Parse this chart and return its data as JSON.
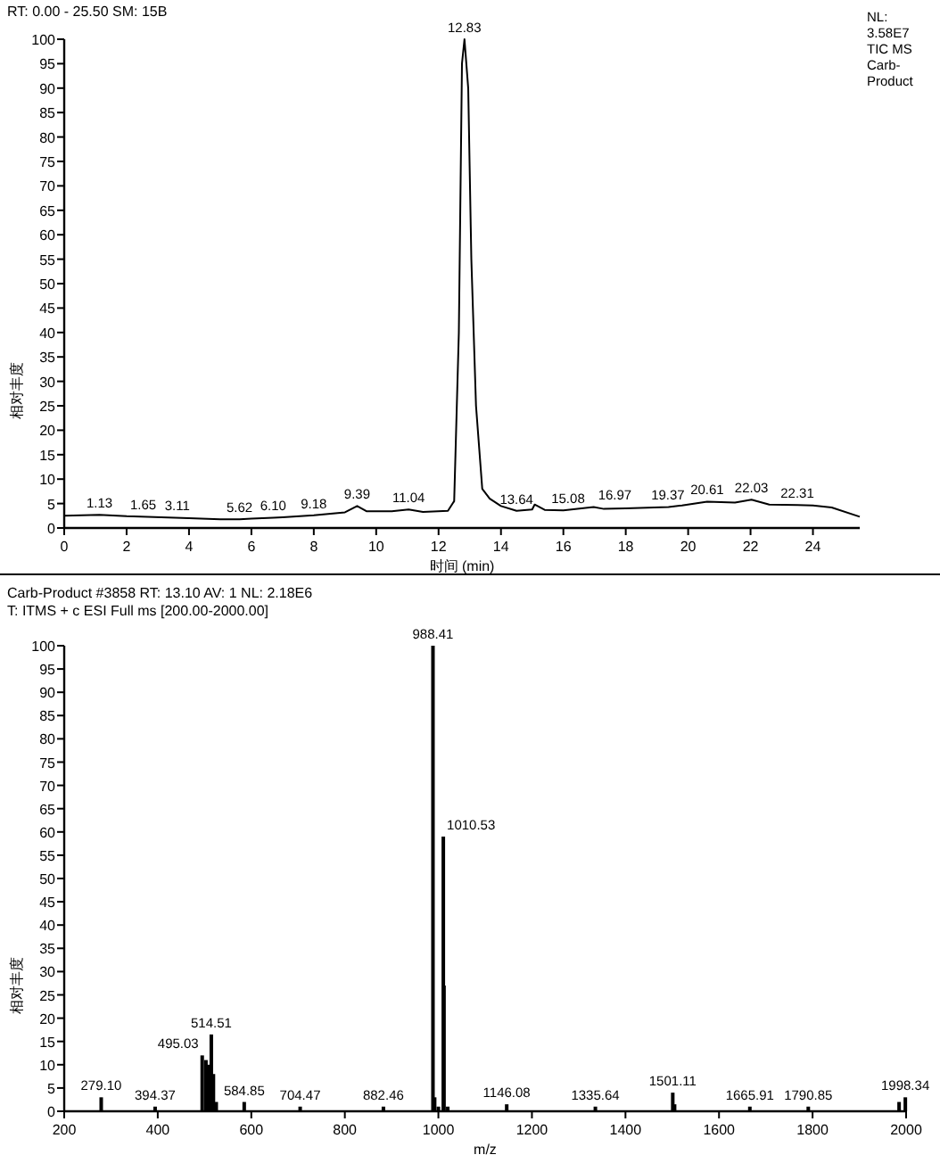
{
  "chart_data": [
    {
      "type": "line",
      "title": "RT: 0.00 - 25.50   SM: 15B",
      "xlabel": "时间 (min)",
      "ylabel": "相对丰度",
      "xlim": [
        0,
        25.5
      ],
      "xticks": [
        0,
        2,
        4,
        6,
        8,
        10,
        12,
        14,
        16,
        18,
        20,
        22,
        24
      ],
      "ylim": [
        0,
        100
      ],
      "yticks": [
        0,
        5,
        10,
        15,
        20,
        25,
        30,
        35,
        40,
        45,
        50,
        55,
        60,
        65,
        70,
        75,
        80,
        85,
        90,
        95,
        100
      ],
      "series": [
        {
          "color": "#000000",
          "x": [
            0,
            1.13,
            2,
            3.11,
            4,
            5,
            5.62,
            6,
            6.7,
            7,
            8,
            9,
            9.39,
            9.7,
            10.5,
            11.04,
            11.5,
            12.3,
            12.5,
            12.65,
            12.75,
            12.83,
            12.95,
            13.05,
            13.2,
            13.4,
            13.64,
            14,
            14.5,
            15,
            15.08,
            15.4,
            16,
            16.97,
            17.3,
            18,
            19.37,
            19.8,
            20.61,
            21.5,
            22.03,
            22.6,
            23.5,
            24,
            24.6,
            25.5
          ],
          "values": [
            2.5,
            2.7,
            2.4,
            2.2,
            2,
            1.8,
            1.8,
            1.9,
            2.1,
            2.2,
            2.6,
            3.2,
            4.5,
            3.4,
            3.4,
            3.8,
            3.3,
            3.5,
            5.5,
            40,
            95,
            100,
            90,
            55,
            25,
            8,
            6,
            4.5,
            3.5,
            3.8,
            4.8,
            3.7,
            3.6,
            4.3,
            3.9,
            4,
            4.3,
            4.6,
            5.4,
            5.2,
            5.8,
            4.8,
            4.7,
            4.6,
            4.2,
            2.3
          ]
        }
      ],
      "annotations": [
        "NL:",
        "3.58E7",
        "TIC  MS",
        "Carb-",
        "Product",
        {
          "text": "1.13",
          "x": 1.13,
          "y": 2.7
        },
        {
          "text": "1.65",
          "x": 2.0,
          "y": 2.4
        },
        {
          "text": "3.11",
          "x": 3.11,
          "y": 2.2
        },
        {
          "text": "5.62",
          "x": 5.62,
          "y": 1.8
        },
        {
          "text": "6.10",
          "x": 6.7,
          "y": 2.1
        },
        {
          "text": "9.18",
          "x": 8.0,
          "y": 2.6
        },
        {
          "text": "9.39",
          "x": 9.39,
          "y": 4.5
        },
        {
          "text": "11.04",
          "x": 11.04,
          "y": 3.8
        },
        {
          "text": "12.83",
          "x": 12.83,
          "y": 100
        },
        {
          "text": "13.64",
          "x": 14.5,
          "y": 3.5
        },
        {
          "text": "15.08",
          "x": 15.5,
          "y": 3.7
        },
        {
          "text": "16.97",
          "x": 17.0,
          "y": 4.3
        },
        {
          "text": "19.37",
          "x": 18.7,
          "y": 4.3
        },
        {
          "text": "20.61",
          "x": 20.61,
          "y": 5.4
        },
        {
          "text": "22.03",
          "x": 22.03,
          "y": 5.8
        },
        {
          "text": "22.31",
          "x": 23.5,
          "y": 4.7
        }
      ]
    },
    {
      "type": "bar",
      "title": "Carb-Product #3858  RT: 13.10  AV: 1  NL: 2.18E6",
      "subtitle": "T: ITMS + c ESI Full ms [200.00-2000.00]",
      "xlabel": "m/z",
      "ylabel": "相对丰度",
      "xlim": [
        200,
        2000
      ],
      "xticks": [
        200,
        400,
        600,
        800,
        1000,
        1200,
        1400,
        1600,
        1800,
        2000
      ],
      "ylim": [
        0,
        100
      ],
      "yticks": [
        0,
        5,
        10,
        15,
        20,
        25,
        30,
        35,
        40,
        45,
        50,
        55,
        60,
        65,
        70,
        75,
        80,
        85,
        90,
        95,
        100
      ],
      "series": [
        {
          "color": "#000000",
          "x": [
            279.1,
            394.37,
            495.03,
            503,
            508,
            514.51,
            519,
            525,
            584.85,
            704.47,
            882.46,
            988.41,
            992,
            1000,
            1010.53,
            1012,
            1020,
            1146.08,
            1335.64,
            1501.11,
            1505,
            1665.91,
            1790.85,
            1985,
            1998.34
          ],
          "values": [
            3,
            1,
            12,
            11,
            10,
            16.5,
            8,
            2,
            2,
            1,
            1,
            100,
            3,
            1,
            59,
            27,
            1,
            1.5,
            1,
            4,
            1.5,
            1,
            1,
            2,
            3
          ]
        }
      ],
      "annotations": [
        {
          "text": "279.10",
          "x": 279.1,
          "y": 3
        },
        {
          "text": "394.37",
          "x": 394.37,
          "y": 1
        },
        {
          "text": "514.51",
          "x": 514.51,
          "y": 16.5
        },
        {
          "text": "495.03",
          "x": 495.03,
          "y": 12
        },
        {
          "text": "584.85",
          "x": 584.85,
          "y": 2
        },
        {
          "text": "704.47",
          "x": 704.47,
          "y": 1
        },
        {
          "text": "882.46",
          "x": 882.46,
          "y": 1
        },
        {
          "text": "988.41",
          "x": 988.41,
          "y": 100
        },
        {
          "text": "1010.53",
          "x": 1010.53,
          "y": 59
        },
        {
          "text": "1146.08",
          "x": 1146.08,
          "y": 1.5
        },
        {
          "text": "1335.64",
          "x": 1335.64,
          "y": 1
        },
        {
          "text": "1501.11",
          "x": 1501.11,
          "y": 4
        },
        {
          "text": "1665.91",
          "x": 1665.91,
          "y": 1
        },
        {
          "text": "1790.85",
          "x": 1790.85,
          "y": 1
        },
        {
          "text": "1998.34",
          "x": 1998.34,
          "y": 3
        }
      ]
    }
  ]
}
